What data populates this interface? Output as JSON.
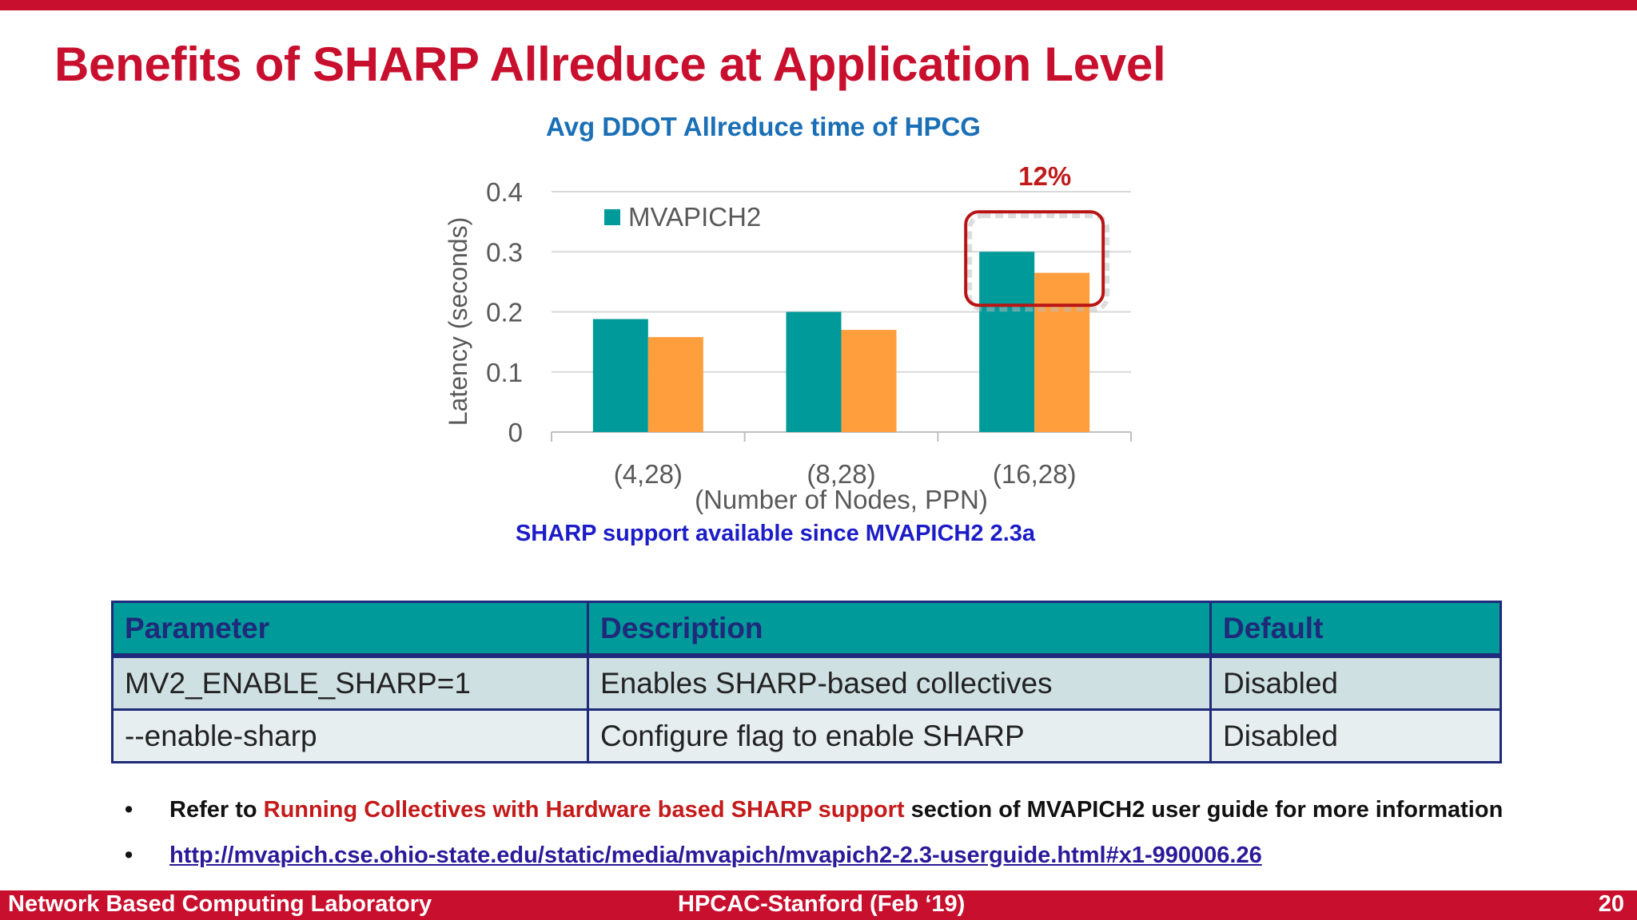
{
  "slide": {
    "title": "Benefits of SHARP Allreduce at Application Level",
    "sharp_note": "SHARP support available since MVAPICH2 2.3a",
    "colors": {
      "accent_red": "#c8102e",
      "teal": "#009a9a",
      "orange": "#ff9e3d",
      "chart_title_blue": "#1a6fb6",
      "note_blue": "#1c1cc8",
      "table_border": "#1f2a7a"
    }
  },
  "chart_data": {
    "type": "bar",
    "title": "Avg DDOT Allreduce time of HPCG",
    "xlabel": "(Number of Nodes, PPN)",
    "ylabel": "Latency (seconds)",
    "categories": [
      "(4,28)",
      "(8,28)",
      "(16,28)"
    ],
    "series": [
      {
        "name": "MVAPICH2",
        "color": "#009a9a",
        "values": [
          0.188,
          0.2,
          0.3
        ]
      },
      {
        "color": "#ff9e3d",
        "values": [
          0.158,
          0.17,
          0.265
        ]
      }
    ],
    "ylim": [
      0,
      0.4
    ],
    "yticks": [
      "0",
      "0.1",
      "0.2",
      "0.3",
      "0.4"
    ],
    "grid": true,
    "legend_position": "top-left",
    "annotation": {
      "text": "12%",
      "category": "(16,28)"
    }
  },
  "table": {
    "headers": [
      "Parameter",
      "Description",
      "Default"
    ],
    "rows": [
      [
        "MV2_ENABLE_SHARP=1",
        "Enables SHARP-based collectives",
        "Disabled"
      ],
      [
        "--enable-sharp",
        "Configure flag to enable SHARP",
        "Disabled"
      ]
    ]
  },
  "bullets": {
    "item1_prefix": "Refer to ",
    "item1_highlight": "Running Collectives with Hardware based SHARP support",
    "item1_suffix": " section of MVAPICH2 user guide for more information",
    "item2_link": "http://mvapich.cse.ohio-state.edu/static/media/mvapich/mvapich2-2.3-userguide.html#x1-990006.26"
  },
  "footer": {
    "left": "Network Based Computing Laboratory",
    "center": "HPCAC-Stanford (Feb ‘19)",
    "page": "20"
  }
}
